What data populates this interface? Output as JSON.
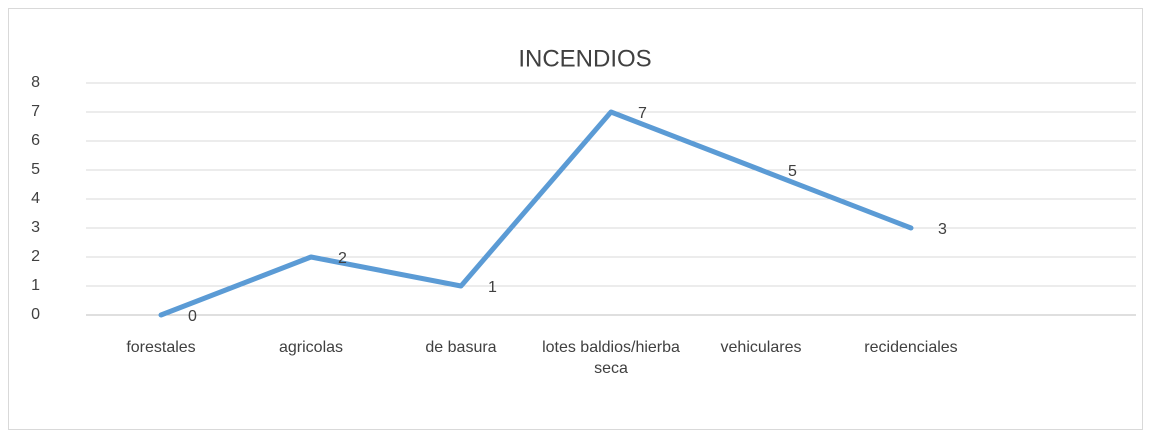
{
  "chart_data": {
    "type": "line",
    "title": "INCENDIOS",
    "categories": [
      "forestales",
      "agricolas",
      "de basura",
      "lotes baldios/hierba seca",
      "vehiculares",
      "recidenciales",
      null
    ],
    "series": [
      {
        "name": "INCENDIOS",
        "color": "#5b9bd5",
        "values": [
          0,
          2,
          1,
          7,
          5,
          3,
          null
        ]
      }
    ],
    "ylim": [
      0,
      8
    ],
    "yticks": [
      0,
      1,
      2,
      3,
      4,
      5,
      6,
      7,
      8
    ],
    "grid": true
  }
}
